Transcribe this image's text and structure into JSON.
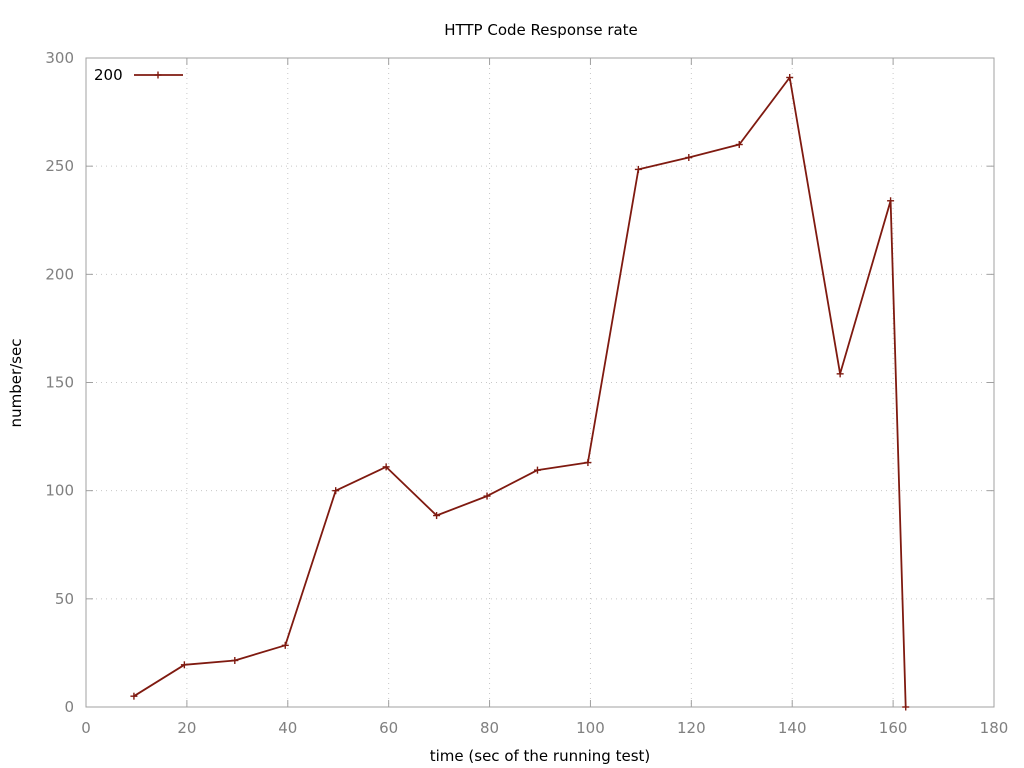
{
  "chart_data": {
    "type": "line",
    "title": "HTTP Code Response rate",
    "xlabel": "time (sec of the running test)",
    "ylabel": "number/sec",
    "xlim": [
      0,
      180
    ],
    "ylim": [
      0,
      300
    ],
    "xticks": [
      0,
      20,
      40,
      60,
      80,
      100,
      120,
      140,
      160,
      180
    ],
    "yticks": [
      0,
      50,
      100,
      150,
      200,
      250,
      300
    ],
    "grid": true,
    "legend_position": "top-left",
    "series": [
      {
        "name": "200",
        "color": "#7f1a10",
        "marker": "plus",
        "points": [
          {
            "x": 9.5,
            "y": 5
          },
          {
            "x": 19.5,
            "y": 19.5
          },
          {
            "x": 29.5,
            "y": 21.5
          },
          {
            "x": 39.5,
            "y": 28.5
          },
          {
            "x": 49.5,
            "y": 100
          },
          {
            "x": 59.5,
            "y": 111
          },
          {
            "x": 69.5,
            "y": 88.5
          },
          {
            "x": 79.5,
            "y": 97.5
          },
          {
            "x": 89.5,
            "y": 109.5
          },
          {
            "x": 99.5,
            "y": 113
          },
          {
            "x": 109.5,
            "y": 248.5
          },
          {
            "x": 119.5,
            "y": 254
          },
          {
            "x": 129.5,
            "y": 260
          },
          {
            "x": 139.5,
            "y": 291
          },
          {
            "x": 149.5,
            "y": 154
          },
          {
            "x": 159.5,
            "y": 234
          },
          {
            "x": 162.5,
            "y": 0
          }
        ]
      }
    ]
  }
}
